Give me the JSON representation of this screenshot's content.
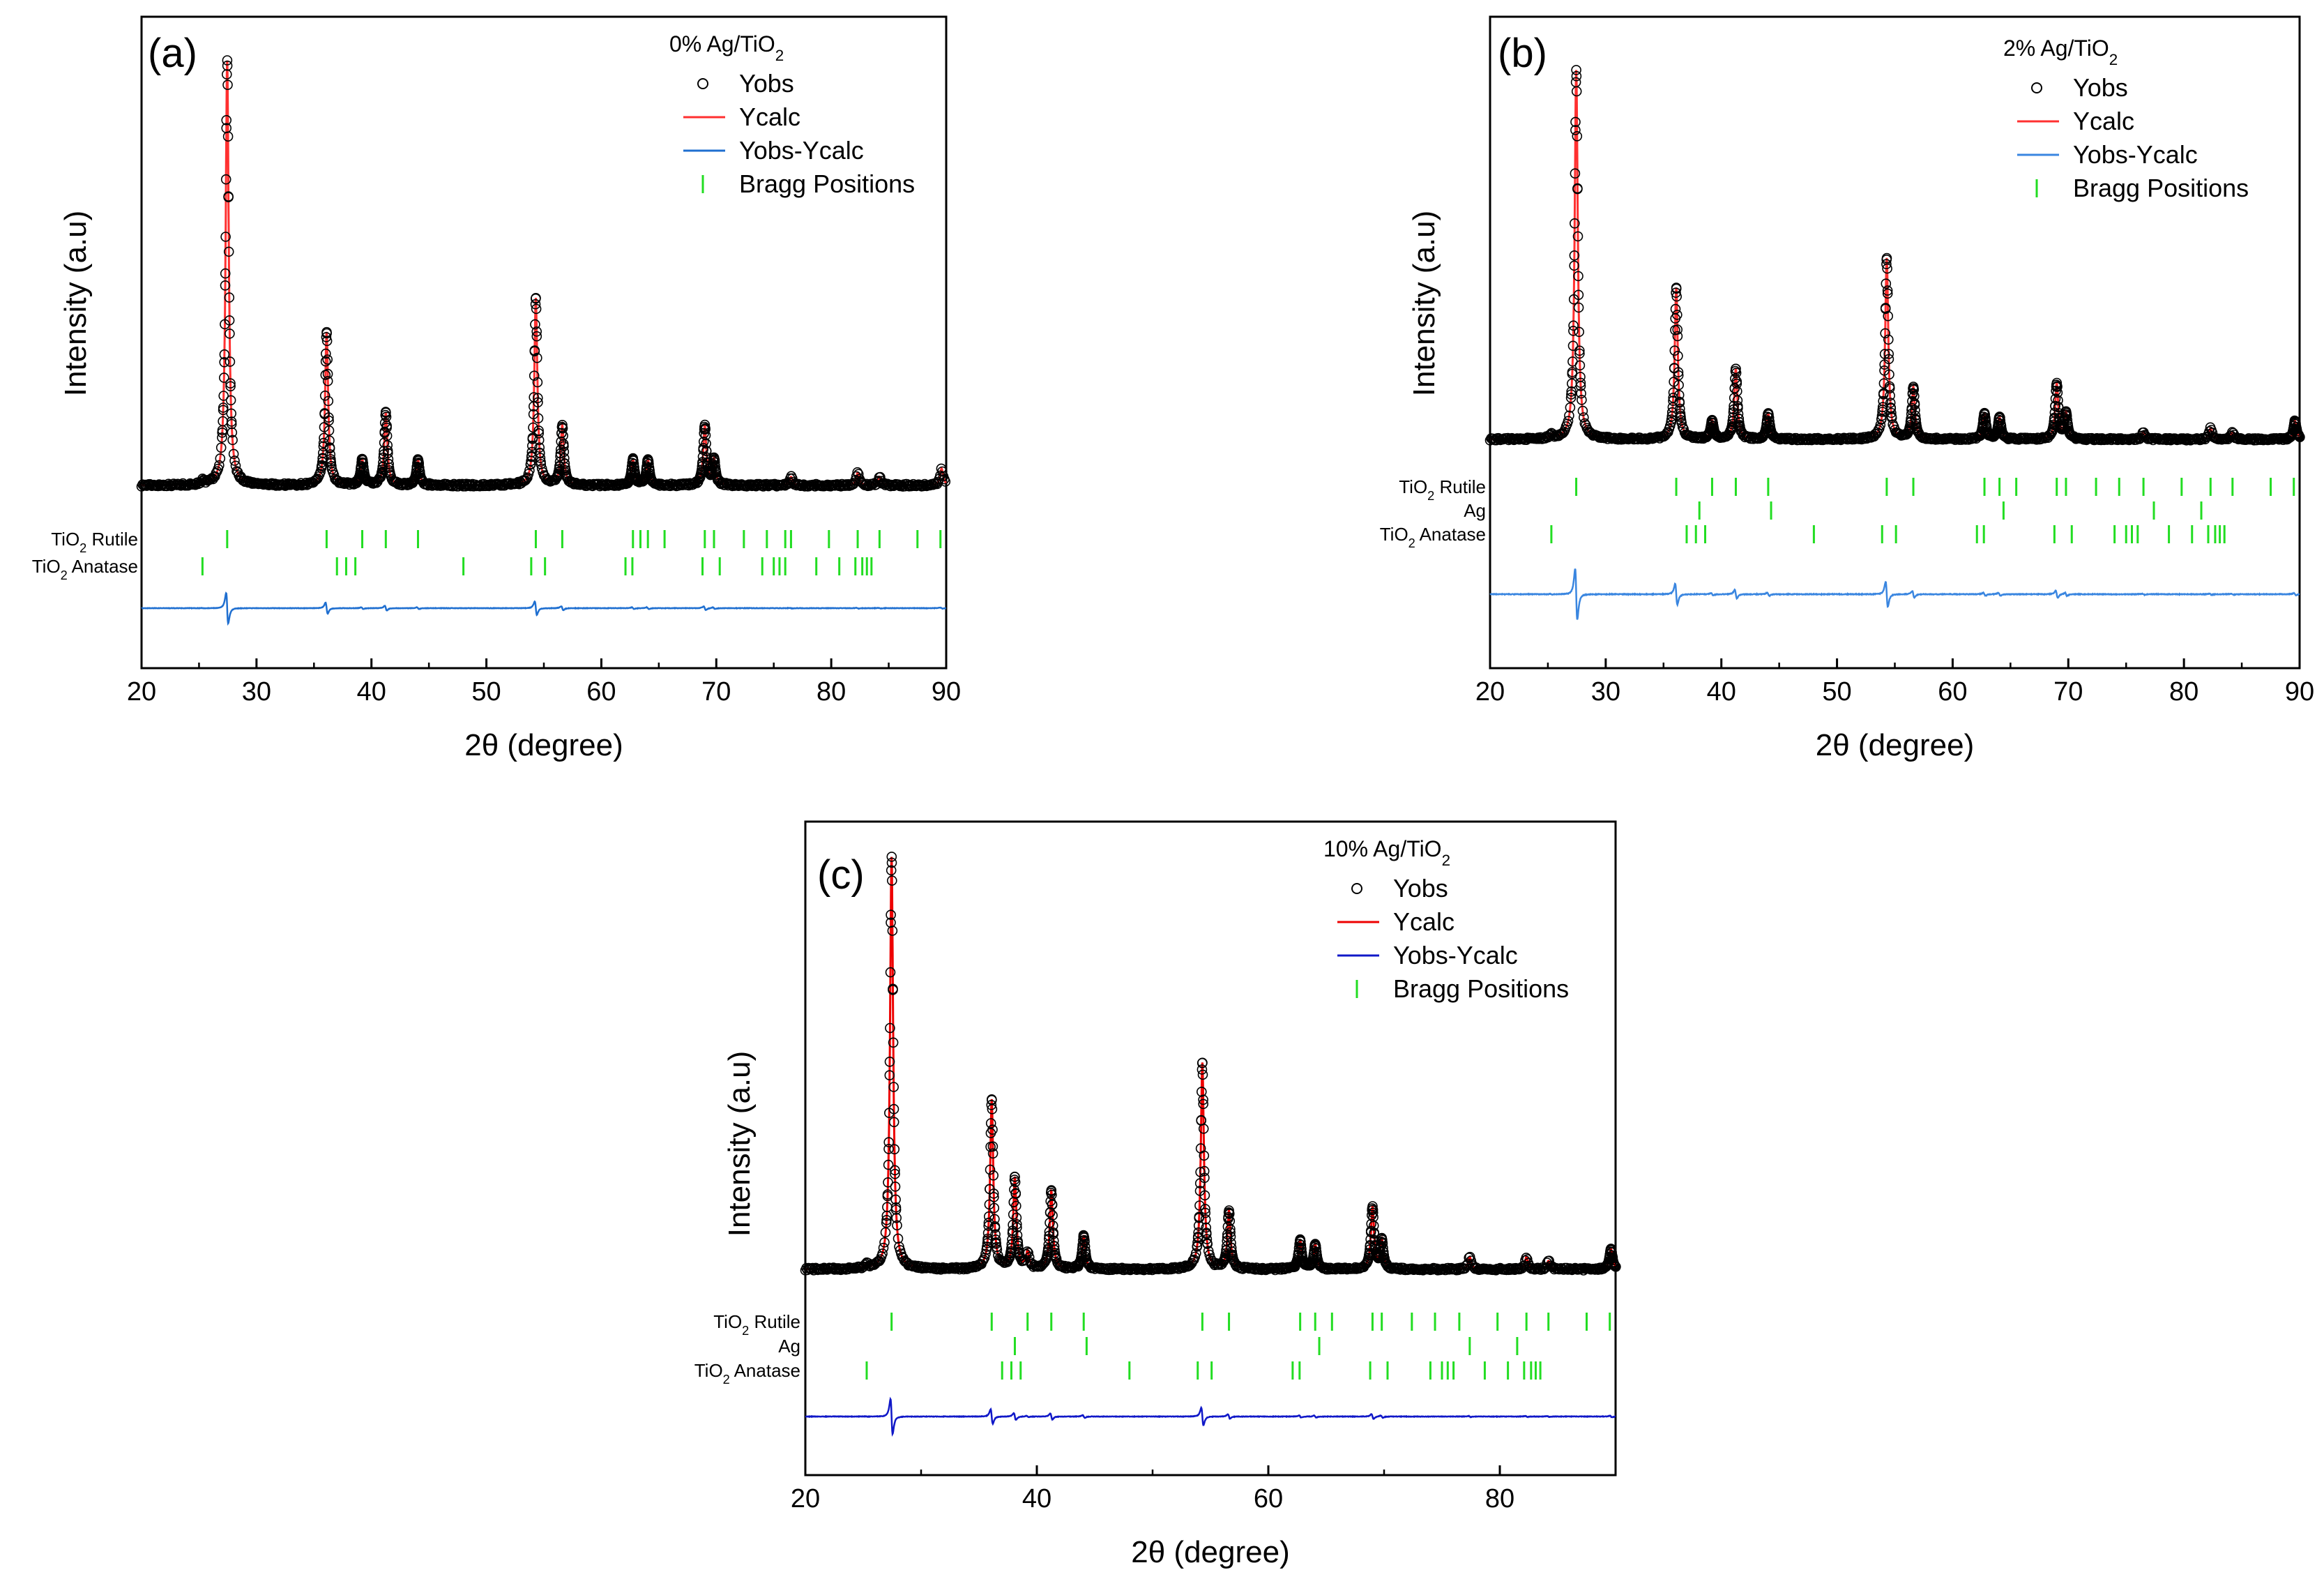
{
  "chart_data": [
    {
      "panel": "(a)",
      "type": "line",
      "title_main": "0% Ag/TiO",
      "title_sub": "2",
      "xlabel": "2θ (degree)",
      "ylabel": "Intensity (a.u)",
      "xlim": [
        20,
        90
      ],
      "xticks": [
        20,
        30,
        40,
        50,
        60,
        70,
        80,
        90
      ],
      "xtick_labels": [
        "20",
        "30",
        "40",
        "50",
        "60",
        "70",
        "80",
        "90"
      ],
      "legend": [
        "Yobs",
        "Ycalc",
        "Yobs-Ycalc",
        "Bragg Positions"
      ],
      "legend_placement": "top-right",
      "colors": {
        "obs": "#000000",
        "calc": "#ff3030",
        "diff": "#1f6fd0",
        "bragg": "#22dd22"
      },
      "background": 0.09,
      "peaks": [
        [
          25.3,
          0.008
        ],
        [
          27.45,
          1.0
        ],
        [
          36.1,
          0.36
        ],
        [
          39.2,
          0.06
        ],
        [
          41.25,
          0.17
        ],
        [
          44.05,
          0.06
        ],
        [
          54.3,
          0.44
        ],
        [
          56.6,
          0.14
        ],
        [
          62.75,
          0.06
        ],
        [
          64.05,
          0.06
        ],
        [
          69.0,
          0.14
        ],
        [
          69.8,
          0.06
        ],
        [
          76.5,
          0.02
        ],
        [
          82.3,
          0.03
        ],
        [
          84.2,
          0.02
        ],
        [
          89.6,
          0.04
        ]
      ],
      "phases": [
        {
          "name": "TiO",
          "sub": "2",
          "suffix": " Rutile",
          "positions": [
            27.45,
            36.1,
            39.2,
            41.25,
            44.05,
            54.3,
            56.6,
            62.75,
            63.4,
            64.05,
            65.5,
            69.0,
            69.8,
            72.4,
            74.4,
            76.0,
            76.5,
            79.8,
            82.3,
            84.2,
            87.5,
            89.5
          ]
        },
        {
          "name": "TiO",
          "sub": "2",
          "suffix": " Anatase",
          "positions": [
            25.3,
            37.0,
            37.8,
            38.6,
            48.0,
            53.9,
            55.1,
            62.1,
            62.7,
            68.8,
            70.3,
            74.0,
            75.0,
            75.5,
            76.0,
            78.7,
            80.7,
            82.1,
            82.7,
            83.1,
            83.5
          ]
        }
      ]
    },
    {
      "panel": "(b)",
      "type": "line",
      "title_main": "2% Ag/TiO",
      "title_sub": "2",
      "xlabel": "2θ (degree)",
      "ylabel": "Intensity (a.u)",
      "xlim": [
        20,
        90
      ],
      "xticks": [
        20,
        30,
        40,
        50,
        60,
        70,
        80,
        90
      ],
      "xtick_labels": [
        "20",
        "30",
        "40",
        "50",
        "60",
        "70",
        "80",
        "90"
      ],
      "legend": [
        "Yobs",
        "Ycalc",
        "Yobs-Ycalc",
        "Bragg Positions"
      ],
      "legend_placement": "top-right",
      "colors": {
        "obs": "#000000",
        "calc": "#ff3030",
        "diff": "#3a86e0",
        "bragg": "#22dd22"
      },
      "background": 0.09,
      "peaks": [
        [
          25.3,
          0.01
        ],
        [
          27.45,
          1.0
        ],
        [
          36.1,
          0.41
        ],
        [
          39.2,
          0.05
        ],
        [
          41.25,
          0.19
        ],
        [
          44.05,
          0.07
        ],
        [
          54.3,
          0.49
        ],
        [
          56.6,
          0.14
        ],
        [
          62.75,
          0.07
        ],
        [
          64.05,
          0.06
        ],
        [
          69.0,
          0.15
        ],
        [
          69.8,
          0.07
        ],
        [
          76.5,
          0.02
        ],
        [
          82.3,
          0.03
        ],
        [
          84.2,
          0.02
        ],
        [
          89.6,
          0.05
        ]
      ],
      "phases": [
        {
          "name": "TiO",
          "sub": "2",
          "suffix": " Rutile",
          "positions": [
            27.45,
            36.1,
            39.2,
            41.25,
            44.05,
            54.3,
            56.6,
            62.75,
            64.05,
            65.5,
            69.0,
            69.8,
            72.4,
            74.4,
            76.5,
            79.8,
            82.3,
            84.2,
            87.5,
            89.5
          ]
        },
        {
          "name": "Ag",
          "sub": "",
          "suffix": "",
          "positions": [
            38.1,
            44.3,
            64.4,
            77.4,
            81.5
          ]
        },
        {
          "name": "TiO",
          "sub": "2",
          "suffix": " Anatase",
          "positions": [
            25.3,
            37.0,
            37.8,
            38.6,
            48.0,
            53.9,
            55.1,
            62.1,
            62.7,
            68.8,
            70.3,
            74.0,
            75.0,
            75.5,
            76.0,
            78.7,
            80.7,
            82.1,
            82.7,
            83.1,
            83.5
          ]
        }
      ]
    },
    {
      "panel": "(c)",
      "type": "line",
      "title_main": "10% Ag/TiO",
      "title_sub": "2",
      "xlabel": "2θ (degree)",
      "ylabel": "Intensity (a.u)",
      "xlim": [
        20,
        90
      ],
      "xticks": [
        20,
        40,
        60,
        80
      ],
      "xtick_labels": [
        "20",
        "40",
        "60",
        "80"
      ],
      "legend": [
        "Yobs",
        "Ycalc",
        "Yobs-Ycalc",
        "Bragg Positions"
      ],
      "legend_placement": "top-right",
      "colors": {
        "obs": "#000000",
        "calc": "#ee0000",
        "diff": "#1018c8",
        "bragg": "#22dd22"
      },
      "background": 0.09,
      "peaks": [
        [
          25.3,
          0.01
        ],
        [
          27.45,
          1.0
        ],
        [
          36.1,
          0.41
        ],
        [
          38.1,
          0.22
        ],
        [
          39.2,
          0.04
        ],
        [
          41.25,
          0.19
        ],
        [
          44.05,
          0.08
        ],
        [
          54.3,
          0.5
        ],
        [
          56.6,
          0.14
        ],
        [
          62.75,
          0.07
        ],
        [
          64.05,
          0.06
        ],
        [
          69.0,
          0.15
        ],
        [
          69.8,
          0.07
        ],
        [
          77.4,
          0.03
        ],
        [
          82.3,
          0.03
        ],
        [
          84.2,
          0.02
        ],
        [
          89.6,
          0.05
        ]
      ],
      "phases": [
        {
          "name": "TiO",
          "sub": "2",
          "suffix": " Rutile",
          "positions": [
            27.45,
            36.1,
            39.2,
            41.25,
            44.05,
            54.3,
            56.6,
            62.75,
            64.05,
            65.5,
            69.0,
            69.8,
            72.4,
            74.4,
            76.5,
            79.8,
            82.3,
            84.2,
            87.5,
            89.5
          ]
        },
        {
          "name": "Ag",
          "sub": "",
          "suffix": "",
          "positions": [
            38.1,
            44.3,
            64.4,
            77.4,
            81.5
          ]
        },
        {
          "name": "TiO",
          "sub": "2",
          "suffix": " Anatase",
          "positions": [
            25.3,
            37.0,
            37.8,
            38.6,
            48.0,
            53.9,
            55.1,
            62.1,
            62.7,
            68.8,
            70.3,
            74.0,
            75.0,
            75.5,
            76.0,
            78.7,
            80.7,
            82.1,
            82.7,
            83.1,
            83.5
          ]
        }
      ]
    }
  ]
}
